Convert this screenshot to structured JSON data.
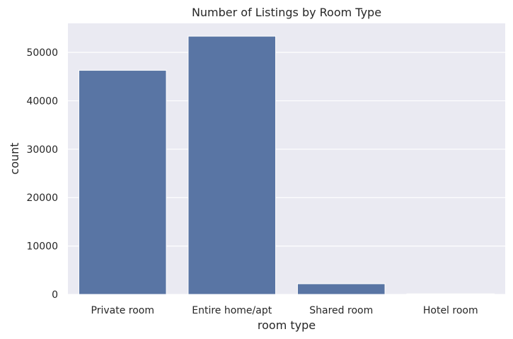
{
  "chart_data": {
    "type": "bar",
    "title": "Number of Listings by Room Type",
    "xlabel": "room type",
    "ylabel": "count",
    "categories": [
      "Private room",
      "Entire home/apt",
      "Shared room",
      "Hotel room"
    ],
    "values": [
      46300,
      53350,
      2200,
      120
    ],
    "ylim": [
      0,
      56000
    ],
    "yticks": [
      0,
      10000,
      20000,
      30000,
      40000,
      50000
    ],
    "ytick_labels": [
      "0",
      "10000",
      "20000",
      "30000",
      "40000",
      "50000"
    ],
    "grid": true,
    "legend": "none",
    "colors": {
      "bar": "#5975a4",
      "plot_background": "#eaeaf2",
      "grid": "#ffffff",
      "text": "#262626"
    }
  }
}
